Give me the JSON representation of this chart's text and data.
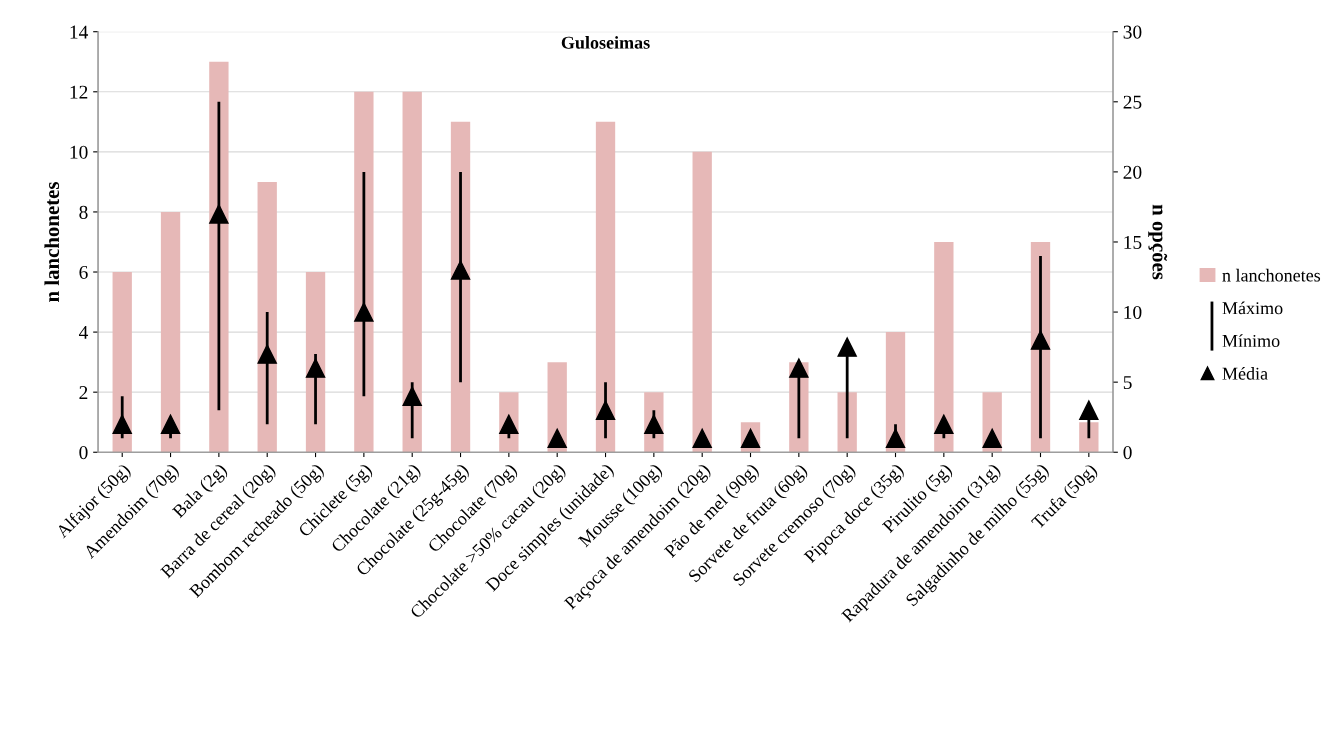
{
  "chart_data": {
    "type": "bar",
    "title": "Guloseimas",
    "ylabel": "n lanchonetes",
    "y2label": "n opções",
    "categories": [
      "Alfajor (50g)",
      "Amendoim (70g)",
      "Bala (2g)",
      "Barra de cereal (20g)",
      "Bombom recheado (50g)",
      "Chiclete (5g)",
      "Chocolate (21g)",
      "Chocolate (25g-45g)",
      "Chocolate (70g)",
      "Chocolate >50% cacau (20g)",
      "Doce simples (unidade)",
      "Mousse (100g)",
      "Paçoca de amendoim (20g)",
      "Pão de mel (90g)",
      "Sorvete de fruta (60g)",
      "Sorvete cremoso (70g)",
      "Pipoca doce (35g)",
      "Pirulito (5g)",
      "Rapadura de amendoim (31g)",
      "Salgadinho de milho (55g)",
      "Trufa (50g)"
    ],
    "series": [
      {
        "name": "n lanchonetes",
        "color": "#e6b8b7",
        "values": [
          6,
          8,
          13,
          9,
          6,
          12,
          12,
          11,
          2,
          3,
          11,
          2,
          10,
          1,
          3,
          2,
          4,
          7,
          2,
          7,
          1
        ]
      },
      {
        "name": "Média",
        "type": "scatter",
        "axis": "y2",
        "color": "#000000",
        "marker": "triangle",
        "values": [
          2,
          2,
          17,
          7,
          6,
          10,
          4,
          13,
          2,
          1,
          3,
          2,
          1,
          1,
          6,
          7.5,
          1,
          2,
          1,
          8,
          3
        ],
        "errors": [
          [
            1,
            4
          ],
          [
            1,
            2
          ],
          [
            3,
            25
          ],
          [
            2,
            10
          ],
          [
            2,
            7
          ],
          [
            4,
            20
          ],
          [
            1,
            5
          ],
          [
            5,
            20
          ],
          [
            1,
            2
          ],
          null,
          [
            1,
            5
          ],
          [
            1,
            3
          ],
          null,
          null,
          [
            1,
            6
          ],
          [
            1,
            8
          ],
          [
            1,
            2
          ],
          [
            1,
            2
          ],
          null,
          [
            1,
            14
          ],
          [
            1,
            3
          ]
        ]
      }
    ],
    "annotations": [
      "Máximo",
      "Mínimo"
    ],
    "ylim": [
      0,
      14
    ],
    "yticks": [
      0,
      2,
      4,
      6,
      8,
      10,
      12,
      14
    ],
    "y2lim": [
      0,
      30
    ],
    "y2ticks": [
      0,
      5,
      10,
      15,
      20,
      25,
      30
    ],
    "grid": "y",
    "legend": "right"
  }
}
